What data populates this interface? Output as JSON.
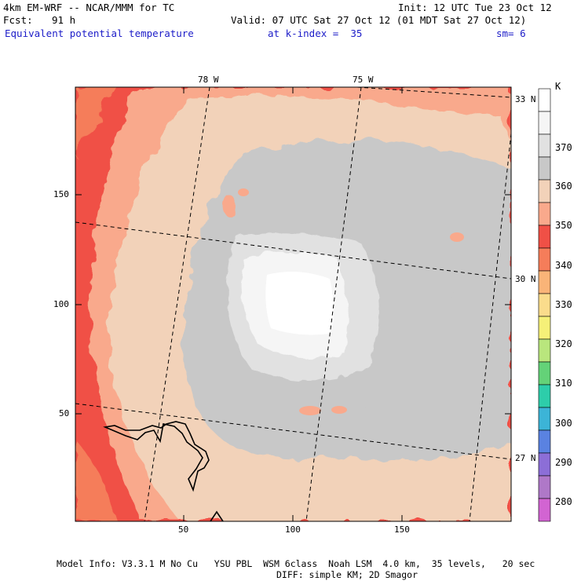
{
  "header": {
    "model": "4km EM-WRF -- NCAR/MMM for TC",
    "init": "Init: 12 UTC Tue 23 Oct 12",
    "fcst_label": "Fcst:",
    "fcst_value": "91 h",
    "valid": "Valid: 07 UTC Sat 27 Oct 12 (01 MDT Sat 27 Oct 12)",
    "field": "Equivalent potential temperature",
    "level": "at k-index =  35",
    "smoothing": "sm= 6"
  },
  "map": {
    "top_lon_labels": [
      "78 W",
      "75 W"
    ],
    "right_lat_labels": [
      "33 N",
      "30 N",
      "27 N"
    ],
    "y_ticks": [
      "150",
      "100",
      "50"
    ],
    "x_ticks": [
      "50",
      "100",
      "150"
    ],
    "grid_x_range": [
      0,
      199
    ],
    "grid_y_range": [
      0,
      199
    ]
  },
  "colorbar": {
    "unit": "K",
    "labels": [
      "370",
      "360",
      "350",
      "340",
      "330",
      "320",
      "310",
      "300",
      "290",
      "280"
    ],
    "colors": [
      "#ffffff",
      "#f5f5f5",
      "#e1e1e1",
      "#c8c8c8",
      "#f2d2b9",
      "#f9a98c",
      "#f05046",
      "#f57d5a",
      "#f9b478",
      "#fadc8c",
      "#f5f078",
      "#b9e67d",
      "#64d278",
      "#2dcdaa",
      "#3cb4d7",
      "#5a82e1",
      "#8c6ed7",
      "#af78c8",
      "#d264d2"
    ]
  },
  "footer": {
    "line1": "Model Info: V3.3.1 M No Cu   YSU PBL  WSM 6class  Noah LSM  4.0 km,  35 levels,   20 sec",
    "line2": "DIFF: simple KM; 2D Smagor"
  }
}
